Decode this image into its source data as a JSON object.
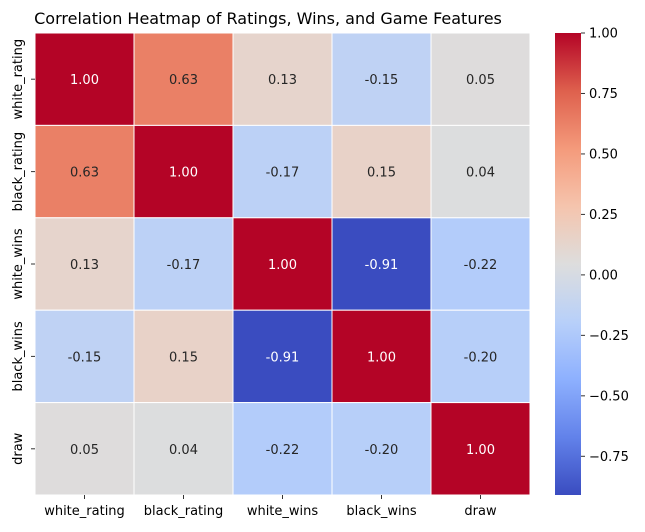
{
  "chart_data": {
    "type": "heatmap",
    "title": "Correlation Heatmap of Ratings, Wins, and Game Features",
    "xlabel": "",
    "ylabel": "",
    "x_categories": [
      "white_rating",
      "black_rating",
      "white_wins",
      "black_wins",
      "draw"
    ],
    "y_categories": [
      "white_rating",
      "black_rating",
      "white_wins",
      "black_wins",
      "draw"
    ],
    "values": [
      [
        1.0,
        0.63,
        0.13,
        -0.15,
        0.05
      ],
      [
        0.63,
        1.0,
        -0.17,
        0.15,
        0.04
      ],
      [
        0.13,
        -0.17,
        1.0,
        -0.91,
        -0.22
      ],
      [
        -0.15,
        0.15,
        -0.91,
        1.0,
        -0.2
      ],
      [
        0.05,
        0.04,
        -0.22,
        -0.2,
        1.0
      ]
    ],
    "value_labels": [
      [
        "1.00",
        "0.63",
        "0.13",
        "-0.15",
        "0.05"
      ],
      [
        "0.63",
        "1.00",
        "-0.17",
        "0.15",
        "0.04"
      ],
      [
        "0.13",
        "-0.17",
        "1.00",
        "-0.91",
        "-0.22"
      ],
      [
        "-0.15",
        "0.15",
        "-0.91",
        "1.00",
        "-0.20"
      ],
      [
        "0.05",
        "0.04",
        "-0.22",
        "-0.20",
        "1.00"
      ]
    ],
    "colormap": "coolwarm",
    "color_range": [
      -0.91,
      1.0
    ],
    "colorbar_ticks": [
      1.0,
      0.75,
      0.5,
      0.25,
      0.0,
      -0.25,
      -0.5,
      -0.75
    ],
    "colorbar_tick_labels": [
      "1.00",
      "0.75",
      "0.50",
      "0.25",
      "0.00",
      "−0.25",
      "−0.50",
      "−0.75"
    ],
    "grid": false,
    "legend": "colorbar-right"
  }
}
